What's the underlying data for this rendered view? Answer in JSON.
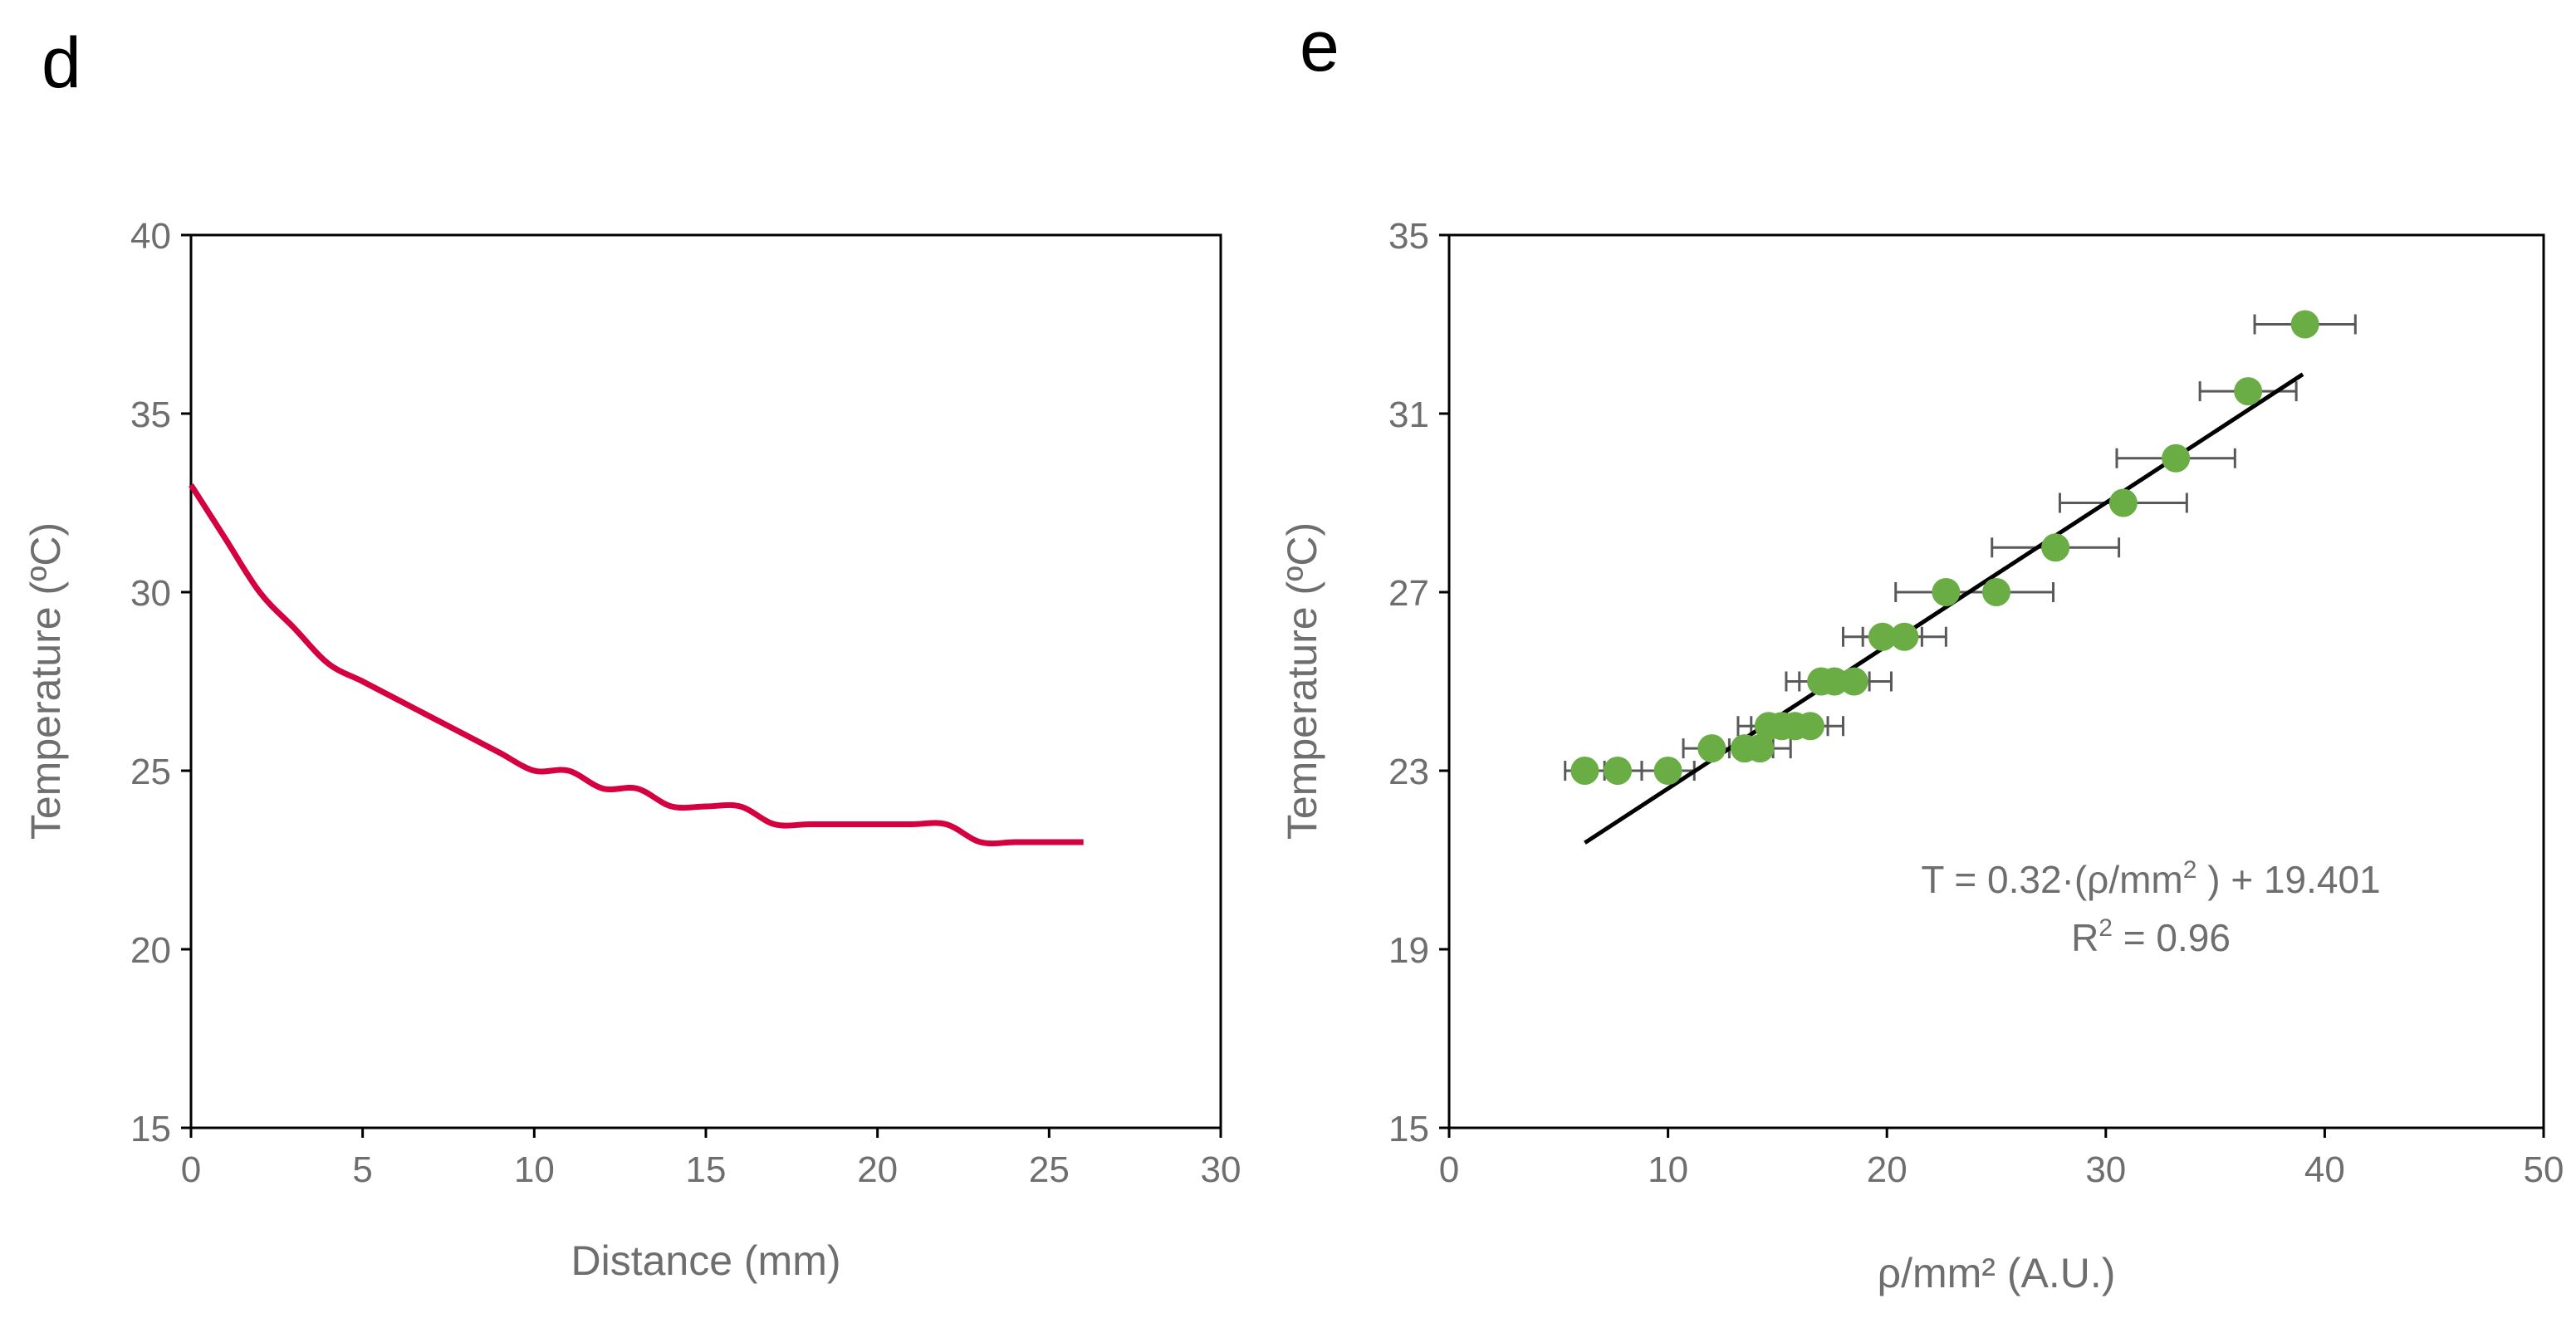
{
  "colors": {
    "panel_d_line": "#d5003f",
    "panel_e_points": "#6aad45",
    "panel_e_fit": "#000000",
    "errorbar": "#595959",
    "axis": "#000000",
    "tick_text": "#6e6e6e"
  },
  "chart_data": [
    {
      "panel": "d",
      "type": "line",
      "title": "",
      "xlabel": "Distance (mm)",
      "ylabel": "Temperature (ºC)",
      "xlim": [
        0,
        30
      ],
      "ylim": [
        15,
        40
      ],
      "xticks": [
        0,
        5,
        10,
        15,
        20,
        25,
        30
      ],
      "yticks": [
        15,
        20,
        25,
        30,
        35,
        40
      ],
      "grid": false,
      "series": [
        {
          "x": [
            0,
            1,
            2,
            3,
            4,
            5,
            6,
            7,
            8,
            9,
            10,
            11,
            12,
            13,
            14,
            15,
            16,
            17,
            18,
            19,
            20,
            21,
            22,
            23,
            24,
            25,
            26
          ],
          "y": [
            33,
            31.5,
            30,
            29,
            28,
            27.5,
            27,
            26.5,
            26,
            25.5,
            25,
            25,
            24.5,
            24.5,
            24,
            24,
            24,
            23.5,
            23.5,
            23.5,
            23.5,
            23.5,
            23.5,
            23,
            23,
            23,
            23
          ]
        }
      ]
    },
    {
      "panel": "e",
      "type": "scatter",
      "title": "",
      "xlabel": "ρ/mm² (A.U.)",
      "ylabel": "Temperature (ºC)",
      "xlim": [
        0,
        50
      ],
      "ylim": [
        15,
        35
      ],
      "xticks": [
        0,
        10,
        20,
        30,
        40,
        50
      ],
      "yticks": [
        15,
        19,
        23,
        27,
        31,
        35
      ],
      "grid": false,
      "series": [
        {
          "x": [
            6.2,
            7.7,
            10.0,
            12.0,
            13.5,
            14.2,
            14.6,
            15.2,
            15.8,
            16.5,
            17.0,
            17.6,
            18.5,
            19.8,
            20.8,
            22.7,
            25.0,
            27.7,
            30.8,
            33.2,
            36.5,
            39.1
          ],
          "y": [
            23,
            23,
            23,
            23.5,
            23.5,
            23.5,
            24,
            24,
            24,
            24,
            25,
            25,
            25,
            26,
            26,
            27,
            27,
            28,
            29,
            30,
            31.5,
            33
          ],
          "xerr": [
            0.9,
            1.1,
            1.2,
            1.3,
            1.3,
            1.4,
            1.4,
            1.4,
            1.5,
            1.5,
            1.6,
            1.6,
            1.7,
            1.8,
            1.9,
            2.3,
            2.6,
            2.9,
            2.9,
            2.7,
            2.2,
            2.3
          ]
        }
      ],
      "fit": {
        "x": [
          6.2,
          39.0
        ],
        "slope": 0.32,
        "intercept": 19.401
      },
      "annotation": {
        "equation_parts": [
          "T = 0.32·(ρ/mm",
          "2",
          " ) + 19.401"
        ],
        "r2_parts": [
          "R",
          "2",
          " = 0.96"
        ]
      }
    }
  ],
  "panels": {
    "d": {
      "letter": "d"
    },
    "e": {
      "letter": "e"
    }
  }
}
